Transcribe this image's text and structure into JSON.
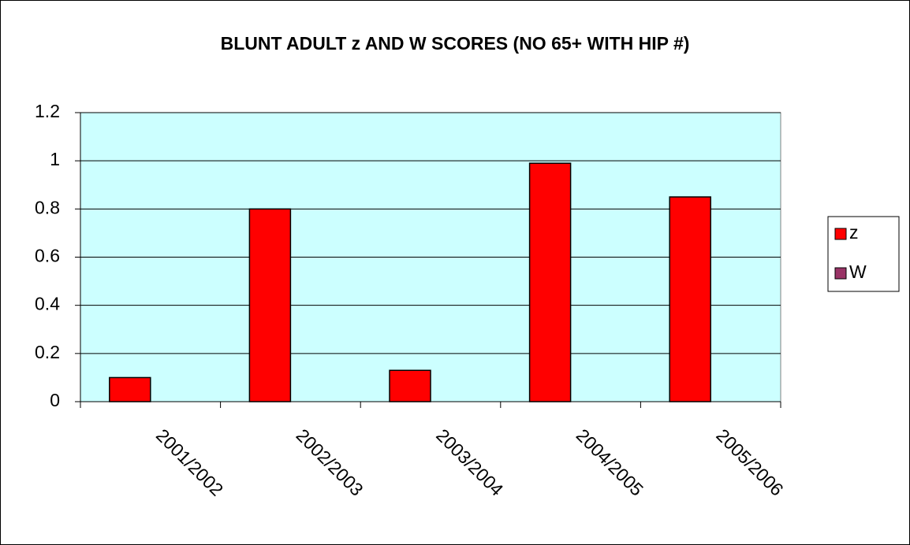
{
  "chart_data": {
    "type": "bar",
    "title": "BLUNT ADULT z AND W SCORES (NO 65+ WITH HIP #)",
    "categories": [
      "2001/2002",
      "2002/2003",
      "2003/2004",
      "2004/2005",
      "2005/2006"
    ],
    "series": [
      {
        "name": "z",
        "color": "#ff0000",
        "values": [
          0.1,
          0.8,
          0.13,
          0.99,
          0.85
        ]
      },
      {
        "name": "W",
        "color": "#993366",
        "values": [
          0,
          0,
          0,
          0,
          0
        ]
      }
    ],
    "ylim": [
      0,
      1.2
    ],
    "yticks": [
      0,
      0.2,
      0.4,
      0.6,
      0.8,
      1,
      1.2
    ],
    "grid": true,
    "legend": "right"
  }
}
